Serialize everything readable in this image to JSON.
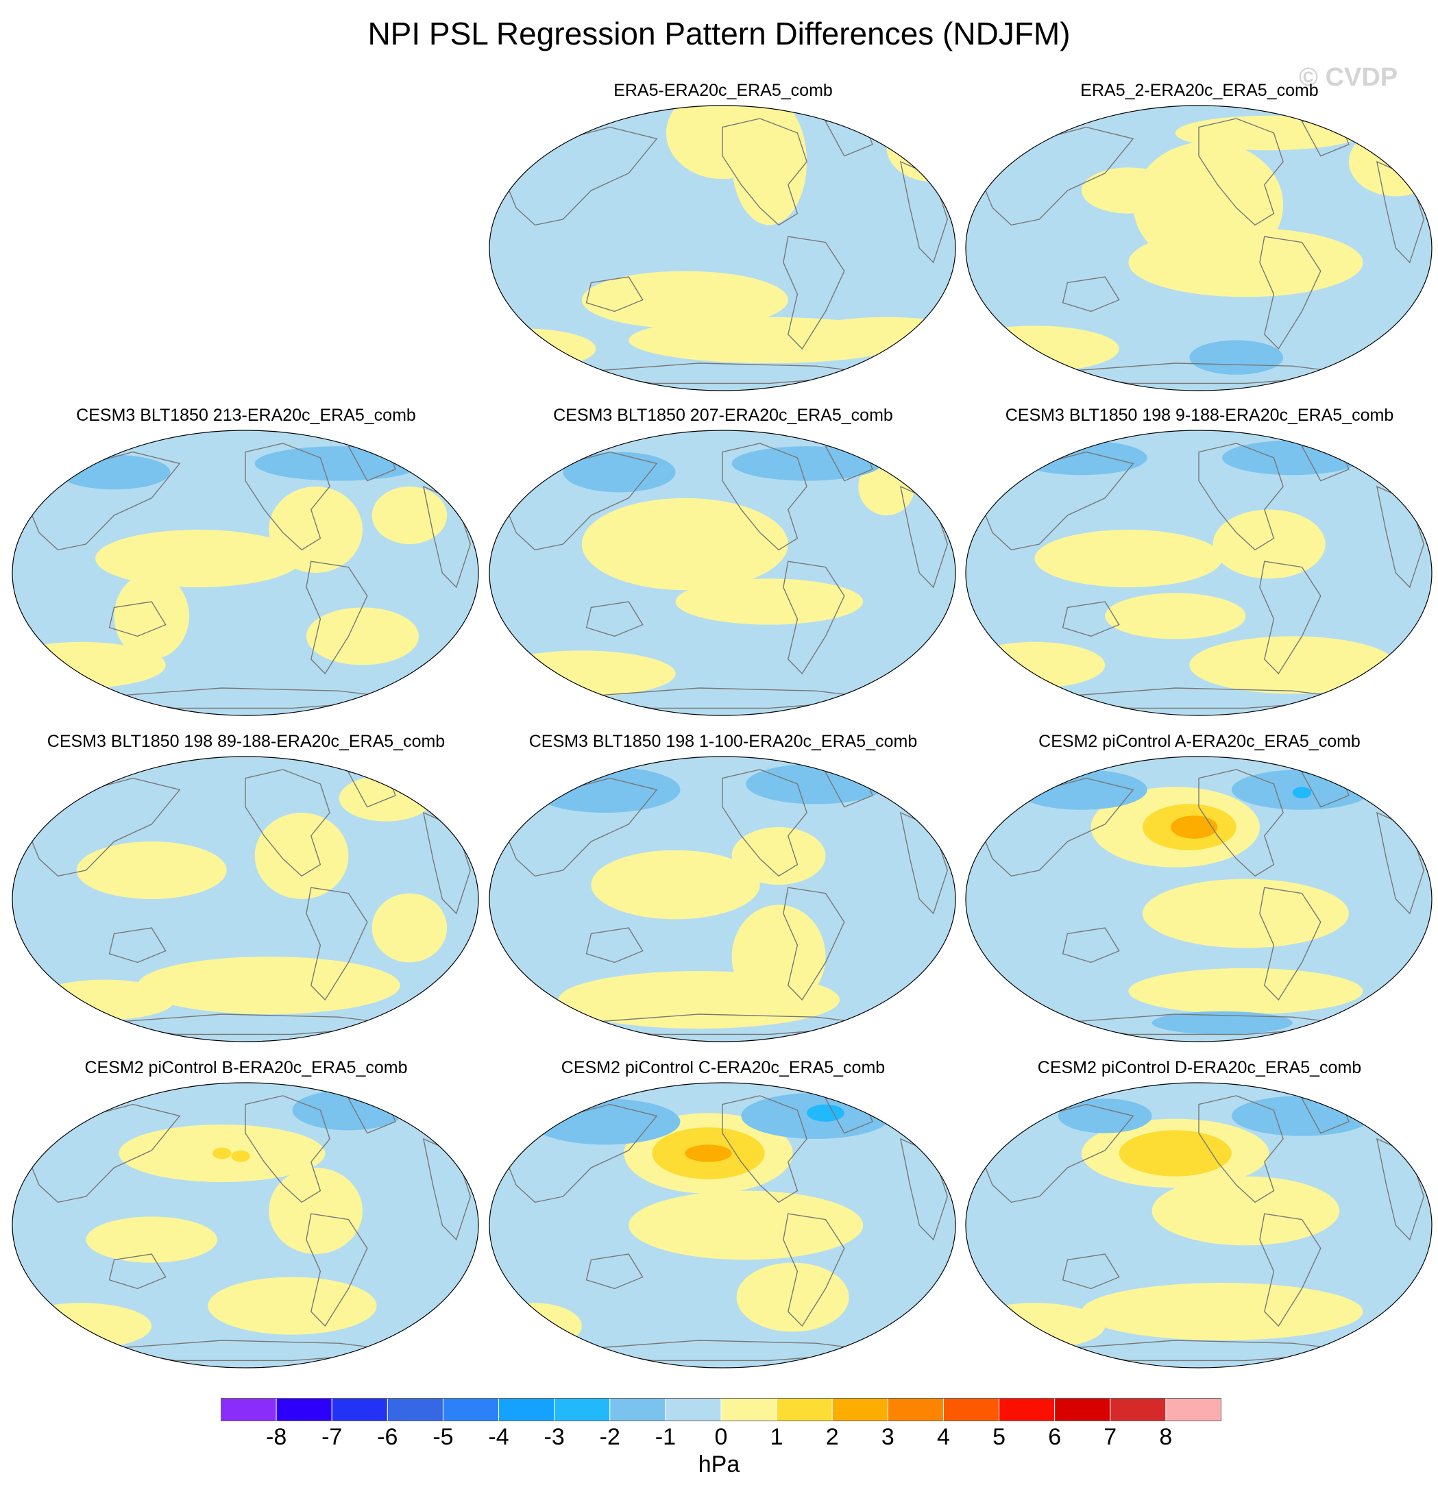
{
  "title": "NPI PSL Regression Pattern Differences (NDJFM)",
  "watermark": "© CVDP",
  "colors": {
    "ocean_neg": "#b4dcf0",
    "land_pos": "#fcf699",
    "neg2": "#7ac3ee",
    "neg3": "#21b9fb",
    "pos2": "#fddc33",
    "pos3": "#fdac00",
    "coast": "#777777"
  },
  "panels": [
    {
      "id": "era5",
      "title": "ERA5-ERA20c_ERA5_comb",
      "blobs": [
        [
          0.5,
          0.1,
          0.12,
          0.16,
          1
        ],
        [
          0.6,
          0.2,
          0.08,
          0.22,
          1
        ],
        [
          0.95,
          0.15,
          0.1,
          0.12,
          1
        ],
        [
          0.42,
          0.68,
          0.22,
          0.1,
          1
        ],
        [
          0.6,
          0.82,
          0.3,
          0.08,
          1
        ],
        [
          0.08,
          0.85,
          0.15,
          0.07,
          1
        ],
        [
          0.85,
          0.8,
          0.18,
          0.06,
          1
        ]
      ]
    },
    {
      "id": "era5_2",
      "title": "ERA5_2-ERA20c_ERA5_comb",
      "blobs": [
        [
          0.52,
          0.35,
          0.16,
          0.22,
          1
        ],
        [
          0.6,
          0.55,
          0.25,
          0.12,
          1
        ],
        [
          0.35,
          0.3,
          0.1,
          0.08,
          1
        ],
        [
          0.92,
          0.2,
          0.1,
          0.12,
          1
        ],
        [
          0.15,
          0.85,
          0.18,
          0.08,
          1
        ],
        [
          0.58,
          0.88,
          0.1,
          0.06,
          -2
        ],
        [
          0.65,
          0.1,
          0.2,
          0.06,
          1
        ]
      ]
    },
    {
      "id": "blt213",
      "title": "CESM3 BLT1850 213-ERA20c_ERA5_comb",
      "blobs": [
        [
          0.22,
          0.15,
          0.12,
          0.06,
          -2
        ],
        [
          0.7,
          0.12,
          0.18,
          0.06,
          -2
        ],
        [
          0.4,
          0.45,
          0.22,
          0.1,
          1
        ],
        [
          0.3,
          0.65,
          0.08,
          0.15,
          1
        ],
        [
          0.65,
          0.35,
          0.1,
          0.15,
          1
        ],
        [
          0.85,
          0.3,
          0.08,
          0.1,
          1
        ],
        [
          0.15,
          0.82,
          0.18,
          0.08,
          1
        ],
        [
          0.75,
          0.72,
          0.12,
          0.1,
          1
        ]
      ]
    },
    {
      "id": "blt207",
      "title": "CESM3 BLT1850 207-ERA20c_ERA5_comb",
      "blobs": [
        [
          0.28,
          0.15,
          0.12,
          0.07,
          -2
        ],
        [
          0.68,
          0.12,
          0.16,
          0.06,
          -2
        ],
        [
          0.42,
          0.4,
          0.22,
          0.16,
          1
        ],
        [
          0.6,
          0.6,
          0.2,
          0.08,
          1
        ],
        [
          0.2,
          0.85,
          0.2,
          0.08,
          1
        ],
        [
          0.85,
          0.2,
          0.06,
          0.1,
          1
        ]
      ]
    },
    {
      "id": "blt198_9",
      "title": "CESM3 BLT1850 198 9-188-ERA20c_ERA5_comb",
      "blobs": [
        [
          0.25,
          0.1,
          0.14,
          0.06,
          -2
        ],
        [
          0.7,
          0.1,
          0.15,
          0.06,
          -2
        ],
        [
          0.35,
          0.45,
          0.2,
          0.1,
          1
        ],
        [
          0.65,
          0.4,
          0.12,
          0.12,
          1
        ],
        [
          0.45,
          0.65,
          0.15,
          0.08,
          1
        ],
        [
          0.7,
          0.82,
          0.22,
          0.1,
          1
        ],
        [
          0.15,
          0.82,
          0.15,
          0.08,
          1
        ]
      ]
    },
    {
      "id": "blt198_89",
      "title": "CESM3 BLT1850 198 89-188-ERA20c_ERA5_comb",
      "blobs": [
        [
          0.8,
          0.15,
          0.1,
          0.08,
          1
        ],
        [
          0.62,
          0.35,
          0.1,
          0.15,
          1
        ],
        [
          0.3,
          0.4,
          0.16,
          0.1,
          1
        ],
        [
          0.55,
          0.8,
          0.28,
          0.1,
          1
        ],
        [
          0.2,
          0.85,
          0.15,
          0.07,
          1
        ],
        [
          0.85,
          0.6,
          0.08,
          0.12,
          1
        ]
      ]
    },
    {
      "id": "blt198_1",
      "title": "CESM3 BLT1850 198 1-100-ERA20c_ERA5_comb",
      "blobs": [
        [
          0.25,
          0.12,
          0.16,
          0.08,
          -2
        ],
        [
          0.7,
          0.1,
          0.15,
          0.07,
          -2
        ],
        [
          0.4,
          0.45,
          0.18,
          0.12,
          1
        ],
        [
          0.62,
          0.7,
          0.1,
          0.18,
          1
        ],
        [
          0.45,
          0.85,
          0.3,
          0.1,
          1
        ],
        [
          0.62,
          0.35,
          0.1,
          0.1,
          1
        ]
      ]
    },
    {
      "id": "cesm2_a",
      "title": "CESM2 piControl A-ERA20c_ERA5_comb",
      "blobs": [
        [
          0.45,
          0.25,
          0.18,
          0.14,
          1
        ],
        [
          0.48,
          0.25,
          0.1,
          0.08,
          2
        ],
        [
          0.49,
          0.25,
          0.05,
          0.04,
          3
        ],
        [
          0.25,
          0.12,
          0.14,
          0.07,
          -2
        ],
        [
          0.72,
          0.12,
          0.15,
          0.07,
          -2
        ],
        [
          0.72,
          0.13,
          0.02,
          0.02,
          -3
        ],
        [
          0.6,
          0.55,
          0.22,
          0.12,
          1
        ],
        [
          0.6,
          0.82,
          0.25,
          0.08,
          1
        ],
        [
          0.55,
          0.93,
          0.15,
          0.04,
          -2
        ]
      ]
    },
    {
      "id": "cesm2_b",
      "title": "CESM2 piControl B-ERA20c_ERA5_comb",
      "blobs": [
        [
          0.45,
          0.25,
          0.22,
          0.1,
          1
        ],
        [
          0.45,
          0.25,
          0.02,
          0.02,
          2
        ],
        [
          0.49,
          0.26,
          0.02,
          0.02,
          2
        ],
        [
          0.72,
          0.1,
          0.12,
          0.07,
          -2
        ],
        [
          0.3,
          0.55,
          0.14,
          0.08,
          1
        ],
        [
          0.65,
          0.45,
          0.1,
          0.15,
          1
        ],
        [
          0.6,
          0.78,
          0.18,
          0.1,
          1
        ],
        [
          0.15,
          0.85,
          0.15,
          0.08,
          1
        ]
      ]
    },
    {
      "id": "cesm2_c",
      "title": "CESM2 piControl C-ERA20c_ERA5_comb",
      "blobs": [
        [
          0.47,
          0.25,
          0.18,
          0.14,
          1
        ],
        [
          0.47,
          0.25,
          0.12,
          0.09,
          2
        ],
        [
          0.47,
          0.25,
          0.05,
          0.03,
          3
        ],
        [
          0.25,
          0.14,
          0.16,
          0.08,
          -2
        ],
        [
          0.7,
          0.12,
          0.16,
          0.08,
          -2
        ],
        [
          0.72,
          0.11,
          0.04,
          0.03,
          -3
        ],
        [
          0.55,
          0.5,
          0.25,
          0.12,
          1
        ],
        [
          0.65,
          0.75,
          0.12,
          0.12,
          1
        ],
        [
          0.1,
          0.85,
          0.1,
          0.08,
          1
        ]
      ]
    },
    {
      "id": "cesm2_d",
      "title": "CESM2 piControl D-ERA20c_ERA5_comb",
      "blobs": [
        [
          0.45,
          0.25,
          0.2,
          0.12,
          1
        ],
        [
          0.45,
          0.25,
          0.12,
          0.08,
          2
        ],
        [
          0.72,
          0.12,
          0.15,
          0.07,
          -2
        ],
        [
          0.3,
          0.12,
          0.1,
          0.06,
          -2
        ],
        [
          0.6,
          0.45,
          0.2,
          0.12,
          1
        ],
        [
          0.55,
          0.8,
          0.3,
          0.1,
          1
        ],
        [
          0.15,
          0.85,
          0.15,
          0.08,
          1
        ]
      ]
    }
  ],
  "colorbar": {
    "colors": [
      "#8a2cfa",
      "#2d00fb",
      "#2233f6",
      "#3667e4",
      "#2a81f8",
      "#15a2fe",
      "#21b9fb",
      "#7ac3ee",
      "#b4dcf0",
      "#fcf699",
      "#fddc33",
      "#fdac00",
      "#fd8400",
      "#fd5a00",
      "#fd0f00",
      "#d90000",
      "#d62a2a",
      "#fcadad"
    ],
    "labels": [
      "-8",
      "-7",
      "-6",
      "-5",
      "-4",
      "-3",
      "-2",
      "-1",
      "0",
      "1",
      "2",
      "3",
      "4",
      "5",
      "6",
      "7",
      "8"
    ],
    "units": "hPa"
  }
}
